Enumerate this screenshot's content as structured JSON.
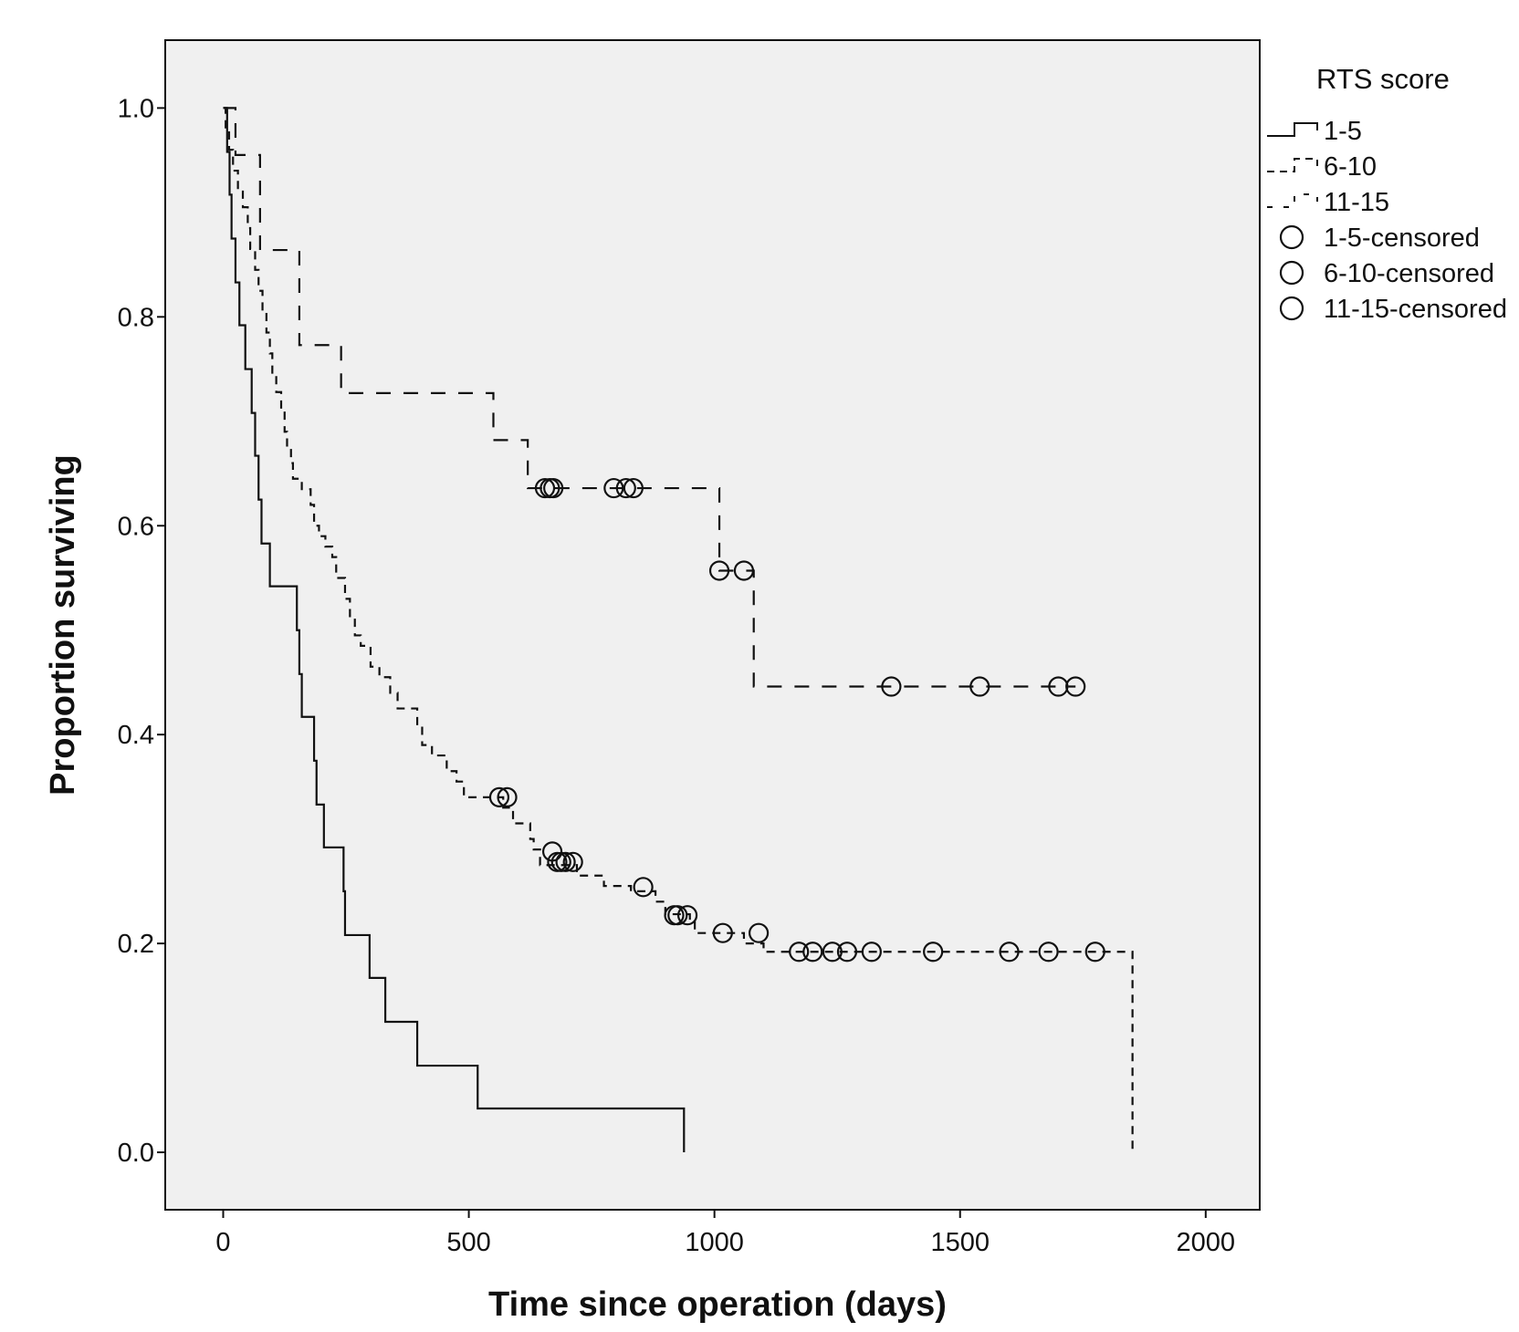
{
  "chart_data": {
    "type": "line",
    "subtype": "kaplan-meier-step",
    "title": "",
    "xlabel": "Time since operation (days)",
    "ylabel": "Proportion surviving",
    "xlim": [
      -118,
      2110
    ],
    "ylim": [
      -0.055,
      1.065
    ],
    "xticks": [
      0,
      500,
      1000,
      1500,
      2000
    ],
    "yticks": [
      0.0,
      0.2,
      0.4,
      0.6,
      0.8,
      1.0
    ],
    "xtick_labels": [
      "0",
      "500",
      "1000",
      "1500",
      "2000"
    ],
    "ytick_labels": [
      "0.0",
      "0.2",
      "0.4",
      "0.6",
      "0.8",
      "1.0"
    ],
    "grid": false,
    "plot_background": "#f0f0f0",
    "line_color": "#111111",
    "legend": {
      "title": "RTS score",
      "placement": "right-outside-top",
      "entries": [
        {
          "label": "1-5",
          "kind": "line",
          "style": "solid"
        },
        {
          "label": "6-10",
          "kind": "line",
          "style": "dashed"
        },
        {
          "label": "11-15",
          "kind": "line",
          "style": "dashed-sparse"
        },
        {
          "label": "1-5-censored",
          "kind": "marker"
        },
        {
          "label": "6-10-censored",
          "kind": "marker"
        },
        {
          "label": "11-15-censored",
          "kind": "marker"
        }
      ]
    },
    "series": [
      {
        "name": "1-5",
        "style": "solid",
        "steps": [
          [
            0,
            1.0
          ],
          [
            8,
            0.958
          ],
          [
            13,
            0.917
          ],
          [
            17,
            0.875
          ],
          [
            25,
            0.833
          ],
          [
            33,
            0.792
          ],
          [
            45,
            0.75
          ],
          [
            58,
            0.708
          ],
          [
            65,
            0.667
          ],
          [
            72,
            0.625
          ],
          [
            78,
            0.583
          ],
          [
            95,
            0.542
          ],
          [
            150,
            0.5
          ],
          [
            155,
            0.458
          ],
          [
            160,
            0.417
          ],
          [
            185,
            0.375
          ],
          [
            190,
            0.333
          ],
          [
            205,
            0.292
          ],
          [
            245,
            0.25
          ],
          [
            248,
            0.208
          ],
          [
            298,
            0.167
          ],
          [
            330,
            0.125
          ],
          [
            395,
            0.083
          ],
          [
            518,
            0.042
          ]
        ],
        "end": [
          938,
          0.0
        ],
        "censored": []
      },
      {
        "name": "6-10",
        "style": "dashed",
        "steps": [
          [
            0,
            1.0
          ],
          [
            5,
            0.98
          ],
          [
            12,
            0.96
          ],
          [
            20,
            0.94
          ],
          [
            30,
            0.92
          ],
          [
            40,
            0.905
          ],
          [
            50,
            0.885
          ],
          [
            55,
            0.865
          ],
          [
            65,
            0.845
          ],
          [
            72,
            0.825
          ],
          [
            80,
            0.805
          ],
          [
            88,
            0.785
          ],
          [
            95,
            0.765
          ],
          [
            100,
            0.745
          ],
          [
            108,
            0.728
          ],
          [
            118,
            0.71
          ],
          [
            125,
            0.69
          ],
          [
            130,
            0.675
          ],
          [
            138,
            0.66
          ],
          [
            142,
            0.645
          ],
          [
            160,
            0.635
          ],
          [
            178,
            0.62
          ],
          [
            185,
            0.6
          ],
          [
            195,
            0.59
          ],
          [
            208,
            0.58
          ],
          [
            222,
            0.57
          ],
          [
            230,
            0.55
          ],
          [
            248,
            0.53
          ],
          [
            258,
            0.51
          ],
          [
            268,
            0.495
          ],
          [
            280,
            0.485
          ],
          [
            300,
            0.465
          ],
          [
            318,
            0.455
          ],
          [
            340,
            0.44
          ],
          [
            355,
            0.425
          ],
          [
            395,
            0.41
          ],
          [
            405,
            0.39
          ],
          [
            425,
            0.38
          ],
          [
            455,
            0.365
          ],
          [
            475,
            0.355
          ],
          [
            490,
            0.34
          ],
          [
            570,
            0.33
          ],
          [
            590,
            0.315
          ],
          [
            625,
            0.3
          ],
          [
            632,
            0.29
          ],
          [
            645,
            0.275
          ],
          [
            720,
            0.265
          ],
          [
            775,
            0.255
          ],
          [
            830,
            0.25
          ],
          [
            880,
            0.24
          ],
          [
            900,
            0.228
          ],
          [
            950,
            0.222
          ],
          [
            960,
            0.21
          ],
          [
            1060,
            0.2
          ],
          [
            1100,
            0.192
          ]
        ],
        "end": [
          1851,
          0.0
        ],
        "censored": [
          [
            562,
            0.34
          ],
          [
            578,
            0.34
          ],
          [
            670,
            0.288
          ],
          [
            680,
            0.278
          ],
          [
            688,
            0.278
          ],
          [
            697,
            0.278
          ],
          [
            712,
            0.278
          ],
          [
            855,
            0.254
          ],
          [
            918,
            0.227
          ],
          [
            925,
            0.227
          ],
          [
            945,
            0.227
          ],
          [
            1017,
            0.21
          ],
          [
            1090,
            0.21
          ],
          [
            1172,
            0.192
          ],
          [
            1200,
            0.192
          ],
          [
            1240,
            0.192
          ],
          [
            1270,
            0.192
          ],
          [
            1320,
            0.192
          ],
          [
            1445,
            0.192
          ],
          [
            1600,
            0.192
          ],
          [
            1680,
            0.192
          ],
          [
            1775,
            0.192
          ]
        ]
      },
      {
        "name": "11-15",
        "style": "dashed-sparse",
        "steps": [
          [
            0,
            1.0
          ],
          [
            25,
            0.955
          ],
          [
            75,
            0.864
          ],
          [
            155,
            0.773
          ],
          [
            240,
            0.727
          ],
          [
            550,
            0.682
          ],
          [
            620,
            0.636
          ],
          [
            1010,
            0.557
          ],
          [
            1080,
            0.446
          ]
        ],
        "end": null,
        "censored": [
          [
            655,
            0.636
          ],
          [
            665,
            0.636
          ],
          [
            672,
            0.636
          ],
          [
            795,
            0.636
          ],
          [
            820,
            0.636
          ],
          [
            835,
            0.636
          ],
          [
            1010,
            0.557
          ],
          [
            1060,
            0.557
          ],
          [
            1360,
            0.446
          ],
          [
            1540,
            0.446
          ],
          [
            1700,
            0.446
          ],
          [
            1735,
            0.446
          ]
        ]
      }
    ]
  }
}
